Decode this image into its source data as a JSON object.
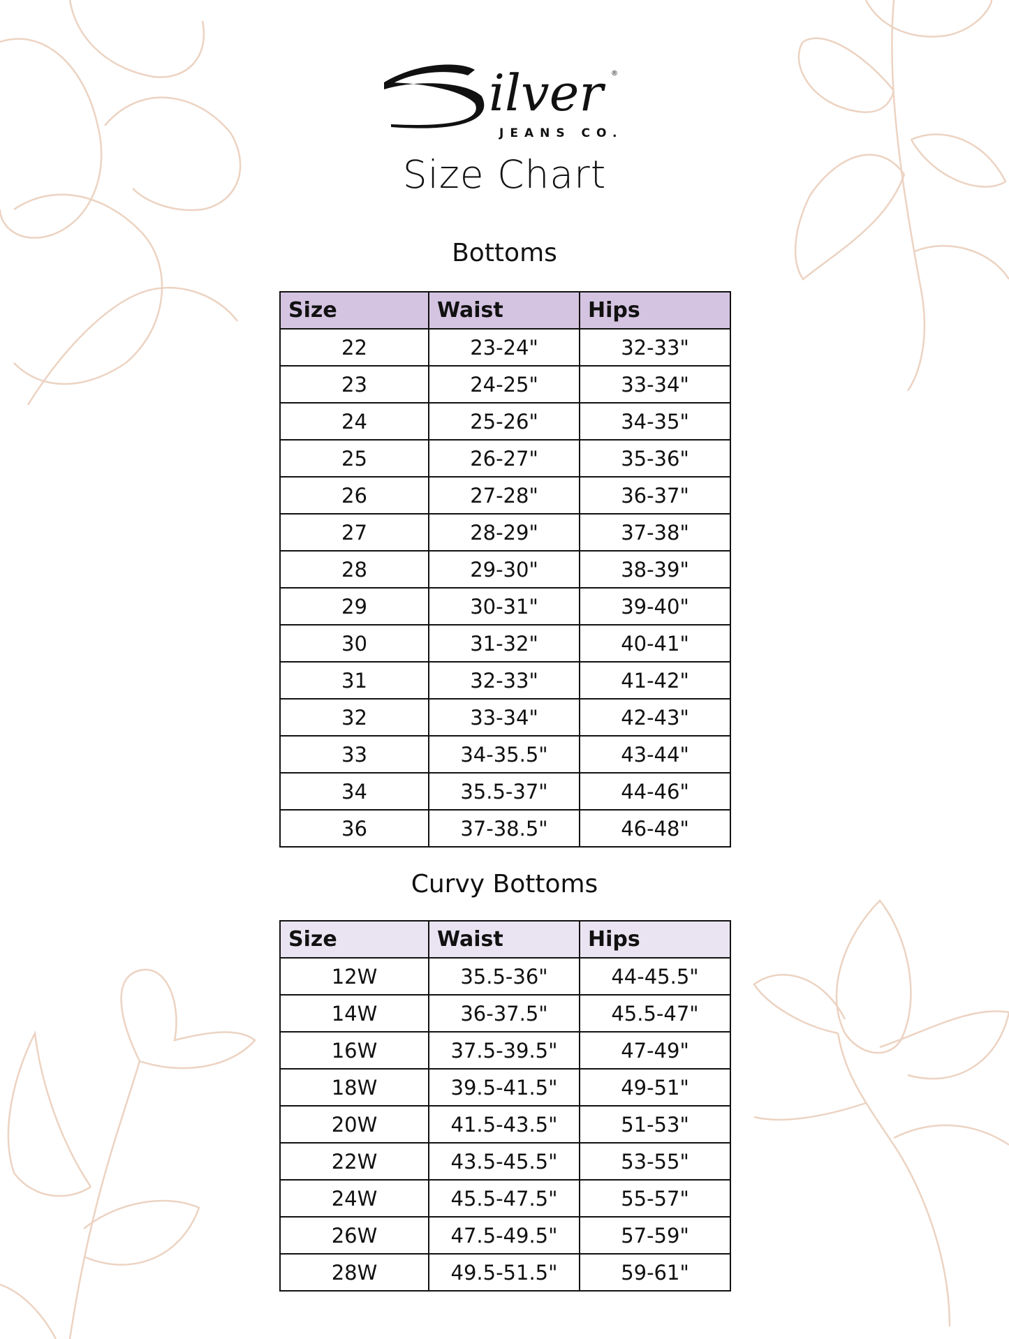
{
  "logo": {
    "brand": "Silver",
    "sub": "JEANS CO."
  },
  "page_title": "Size Chart",
  "bottoms": {
    "title": "Bottoms",
    "header_color": "#d4c4e1",
    "columns": [
      "Size",
      "Waist",
      "Hips"
    ],
    "rows": [
      [
        "22",
        "23-24\"",
        "32-33\""
      ],
      [
        "23",
        "24-25\"",
        "33-34\""
      ],
      [
        "24",
        "25-26\"",
        "34-35\""
      ],
      [
        "25",
        "26-27\"",
        "35-36\""
      ],
      [
        "26",
        "27-28\"",
        "36-37\""
      ],
      [
        "27",
        "28-29\"",
        "37-38\""
      ],
      [
        "28",
        "29-30\"",
        "38-39\""
      ],
      [
        "29",
        "30-31\"",
        "39-40\""
      ],
      [
        "30",
        "31-32\"",
        "40-41\""
      ],
      [
        "31",
        "32-33\"",
        "41-42\""
      ],
      [
        "32",
        "33-34\"",
        "42-43\""
      ],
      [
        "33",
        "34-35.5\"",
        "43-44\""
      ],
      [
        "34",
        "35.5-37\"",
        "44-46\""
      ],
      [
        "36",
        "37-38.5\"",
        "46-48\""
      ]
    ]
  },
  "curvy_bottoms": {
    "title": "Curvy Bottoms",
    "header_color": "#eae4f2",
    "columns": [
      "Size",
      "Waist",
      "Hips"
    ],
    "rows": [
      [
        "12W",
        "35.5-36\"",
        "44-45.5\""
      ],
      [
        "14W",
        "36-37.5\"",
        "45.5-47\""
      ],
      [
        "16W",
        "37.5-39.5\"",
        "47-49\""
      ],
      [
        "18W",
        "39.5-41.5\"",
        "49-51\""
      ],
      [
        "20W",
        "41.5-43.5\"",
        "51-53\""
      ],
      [
        "22W",
        "43.5-45.5\"",
        "53-55\""
      ],
      [
        "24W",
        "45.5-47.5\"",
        "55-57\""
      ],
      [
        "26W",
        "47.5-49.5\"",
        "57-59\""
      ],
      [
        "28W",
        "49.5-51.5\"",
        "59-61\""
      ]
    ]
  },
  "decor_color": "#ecd3c2"
}
